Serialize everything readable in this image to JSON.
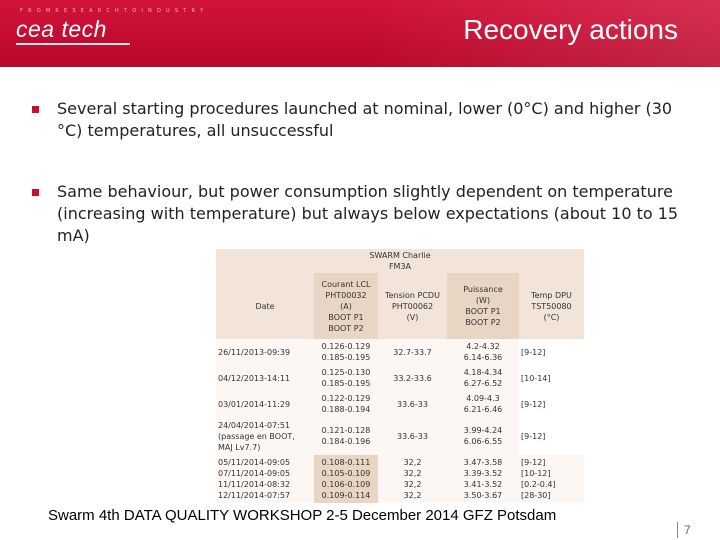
{
  "header": {
    "tagline": "F R O M  R E S E A R C H  T O  I N D U S T R Y",
    "logo": "cea tech",
    "title": "Recovery actions",
    "color": "#c8102e"
  },
  "bullets": [
    "Several starting procedures launched at nominal, lower (0°C) and higher (30 °C) temperatures, all unsuccessful",
    "Same behaviour, but power consumption slightly dependent on temperature (increasing with temperature) but always below expectations (about 10 to 15 mA)"
  ],
  "table": {
    "title_line1": "SWARM Charlie",
    "title_line2": "FM3A",
    "headers": {
      "date": "Date",
      "courant": [
        "Courant LCL",
        "PHT00032",
        "(A)",
        "BOOT P1",
        "BOOT P2"
      ],
      "tension": [
        "Tension PCDU",
        "PHT00062",
        "(V)"
      ],
      "puissance": [
        "Puissance",
        "(W)",
        "BOOT P1",
        "BOOT P2"
      ],
      "temp": [
        "Temp DPU",
        "TST50080",
        "(°C)"
      ]
    },
    "rows": [
      {
        "date": [
          "26/11/2013-09:39"
        ],
        "courant": [
          "0.126-0.129",
          "0.185-0.195"
        ],
        "tension": [
          "32.7-33.7"
        ],
        "puissance": [
          "4.2-4.32",
          "6.14-6.36"
        ],
        "temp": [
          "[9-12]"
        ]
      },
      {
        "date": [
          "04/12/2013-14:11"
        ],
        "courant": [
          "0.125-0.130",
          "0.185-0.195"
        ],
        "tension": [
          "33.2-33.6"
        ],
        "puissance": [
          "4.18-4.34",
          "6.27-6.52"
        ],
        "temp": [
          "[10-14]"
        ]
      },
      {
        "date": [
          "03/01/2014-11:29"
        ],
        "courant": [
          "0.122-0.129",
          "0.188-0.194"
        ],
        "tension": [
          "33.6-33"
        ],
        "puissance": [
          "4.09-4.3",
          "6.21-6.46"
        ],
        "temp": [
          "[9-12]"
        ]
      },
      {
        "date": [
          "24/04/2014-07:51",
          "(passage en BOOT,",
          "MAJ Lv7.7)"
        ],
        "courant": [
          "0.121-0.128",
          "0.184-0.196"
        ],
        "tension": [
          "33.6-33"
        ],
        "puissance": [
          "3.99-4.24",
          "6.06-6.55"
        ],
        "temp": [
          "[9-12]"
        ]
      },
      {
        "date": [
          "05/11/2014-09:05",
          "07/11/2014-09:05",
          "11/11/2014-08:32",
          "12/11/2014-07:57"
        ],
        "courant": [
          "0.108-0.111",
          "0.105-0.109",
          "0.106-0.109",
          "0.109-0.114"
        ],
        "tension": [
          "32,2",
          "32,2",
          "32,2",
          "32,2"
        ],
        "puissance": [
          "3.47-3.58",
          "3.39-3.52",
          "3.41-3.52",
          "3.50-3.67"
        ],
        "temp": [
          "[9-12]",
          "[10-12]",
          "[0.2-0.4]",
          "[28-30]"
        ]
      }
    ]
  },
  "footer": "Swarm 4th DATA QUALITY WORKSHOP 2-5 December 2014 GFZ Potsdam",
  "page_number": "7"
}
